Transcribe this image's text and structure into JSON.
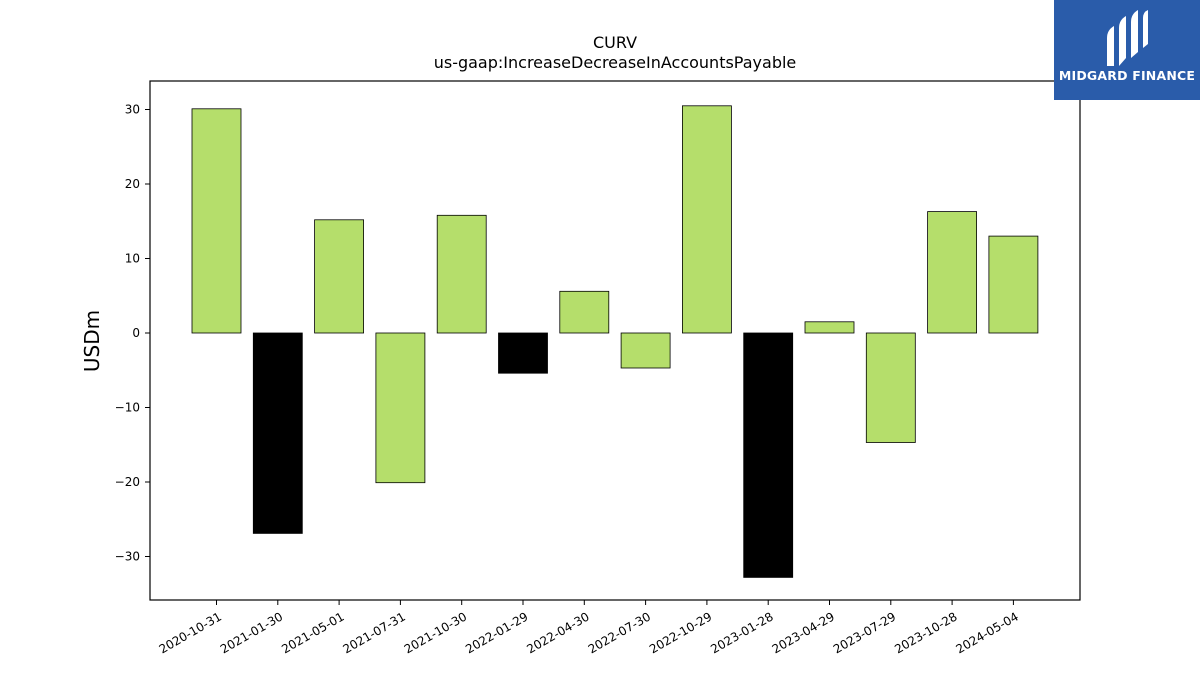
{
  "chart_data": {
    "type": "bar",
    "title": "CURV",
    "subtitle": "us-gaap:IncreaseDecreaseInAccountsPayable",
    "xlabel": "",
    "ylabel": "USDm",
    "ylim": [
      -36,
      34
    ],
    "yticks": [
      -30,
      -20,
      -10,
      0,
      10,
      20,
      30
    ],
    "grid": false,
    "categories": [
      "2020-10-31",
      "2021-01-30",
      "2021-05-01",
      "2021-07-31",
      "2021-10-30",
      "2022-01-29",
      "2022-04-30",
      "2022-07-30",
      "2022-10-29",
      "2023-01-28",
      "2023-04-29",
      "2023-07-29",
      "2023-10-28",
      "2024-05-04"
    ],
    "values": [
      30.1,
      -26.9,
      15.2,
      -20.1,
      15.8,
      -5.4,
      5.6,
      -4.7,
      30.5,
      -32.8,
      1.5,
      -14.7,
      16.3,
      13.0
    ],
    "bar_colors": [
      "#b5de6b",
      "#000000",
      "#b5de6b",
      "#b5de6b",
      "#b5de6b",
      "#000000",
      "#b5de6b",
      "#b5de6b",
      "#b5de6b",
      "#000000",
      "#b5de6b",
      "#b5de6b",
      "#b5de6b",
      "#b5de6b"
    ]
  },
  "logo": {
    "text": "MIDGARD FINANCE",
    "background": "#2a5caa"
  }
}
